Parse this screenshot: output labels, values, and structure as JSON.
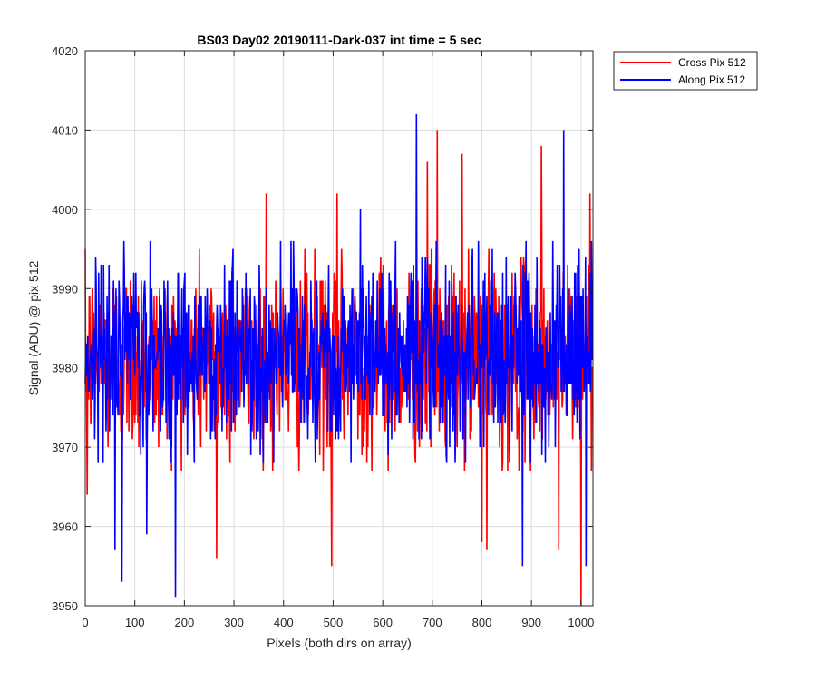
{
  "chart_data": {
    "type": "line",
    "title": "BS03 Day02 20190111-Dark-037 int time = 5 sec",
    "xlabel": "Pixels (both dirs on array)",
    "ylabel": "Signal (ADU) @ pix 512",
    "xlim": [
      0,
      1024
    ],
    "ylim": [
      3950,
      4020
    ],
    "xticks": [
      0,
      100,
      200,
      300,
      400,
      500,
      600,
      700,
      800,
      900,
      1000
    ],
    "yticks": [
      3950,
      3960,
      3970,
      3980,
      3990,
      4000,
      4010,
      4020
    ],
    "grid": true,
    "legend_position": "outside top-right",
    "noise_sigma_adu": 6,
    "series": [
      {
        "name": "Cross Pix 512",
        "color": "#ff0000",
        "mean": 3981,
        "n_points": 1024,
        "notable_points": [
          {
            "x": 4,
            "y": 3964
          },
          {
            "x": 265,
            "y": 3956
          },
          {
            "x": 365,
            "y": 4002
          },
          {
            "x": 497,
            "y": 3955
          },
          {
            "x": 508,
            "y": 4002
          },
          {
            "x": 690,
            "y": 4006
          },
          {
            "x": 710,
            "y": 4010
          },
          {
            "x": 760,
            "y": 4007
          },
          {
            "x": 800,
            "y": 3958
          },
          {
            "x": 810,
            "y": 3957
          },
          {
            "x": 920,
            "y": 4008
          },
          {
            "x": 955,
            "y": 3957
          },
          {
            "x": 1000,
            "y": 3950
          },
          {
            "x": 1018,
            "y": 4002
          }
        ]
      },
      {
        "name": "Along Pix 512",
        "color": "#0000ff",
        "mean": 3982,
        "n_points": 1024,
        "notable_points": [
          {
            "x": 60,
            "y": 3957
          },
          {
            "x": 74,
            "y": 3953
          },
          {
            "x": 124,
            "y": 3959
          },
          {
            "x": 182,
            "y": 3951
          },
          {
            "x": 555,
            "y": 4000
          },
          {
            "x": 668,
            "y": 4012
          },
          {
            "x": 882,
            "y": 3955
          },
          {
            "x": 965,
            "y": 4010
          },
          {
            "x": 1010,
            "y": 3955
          }
        ]
      }
    ]
  }
}
